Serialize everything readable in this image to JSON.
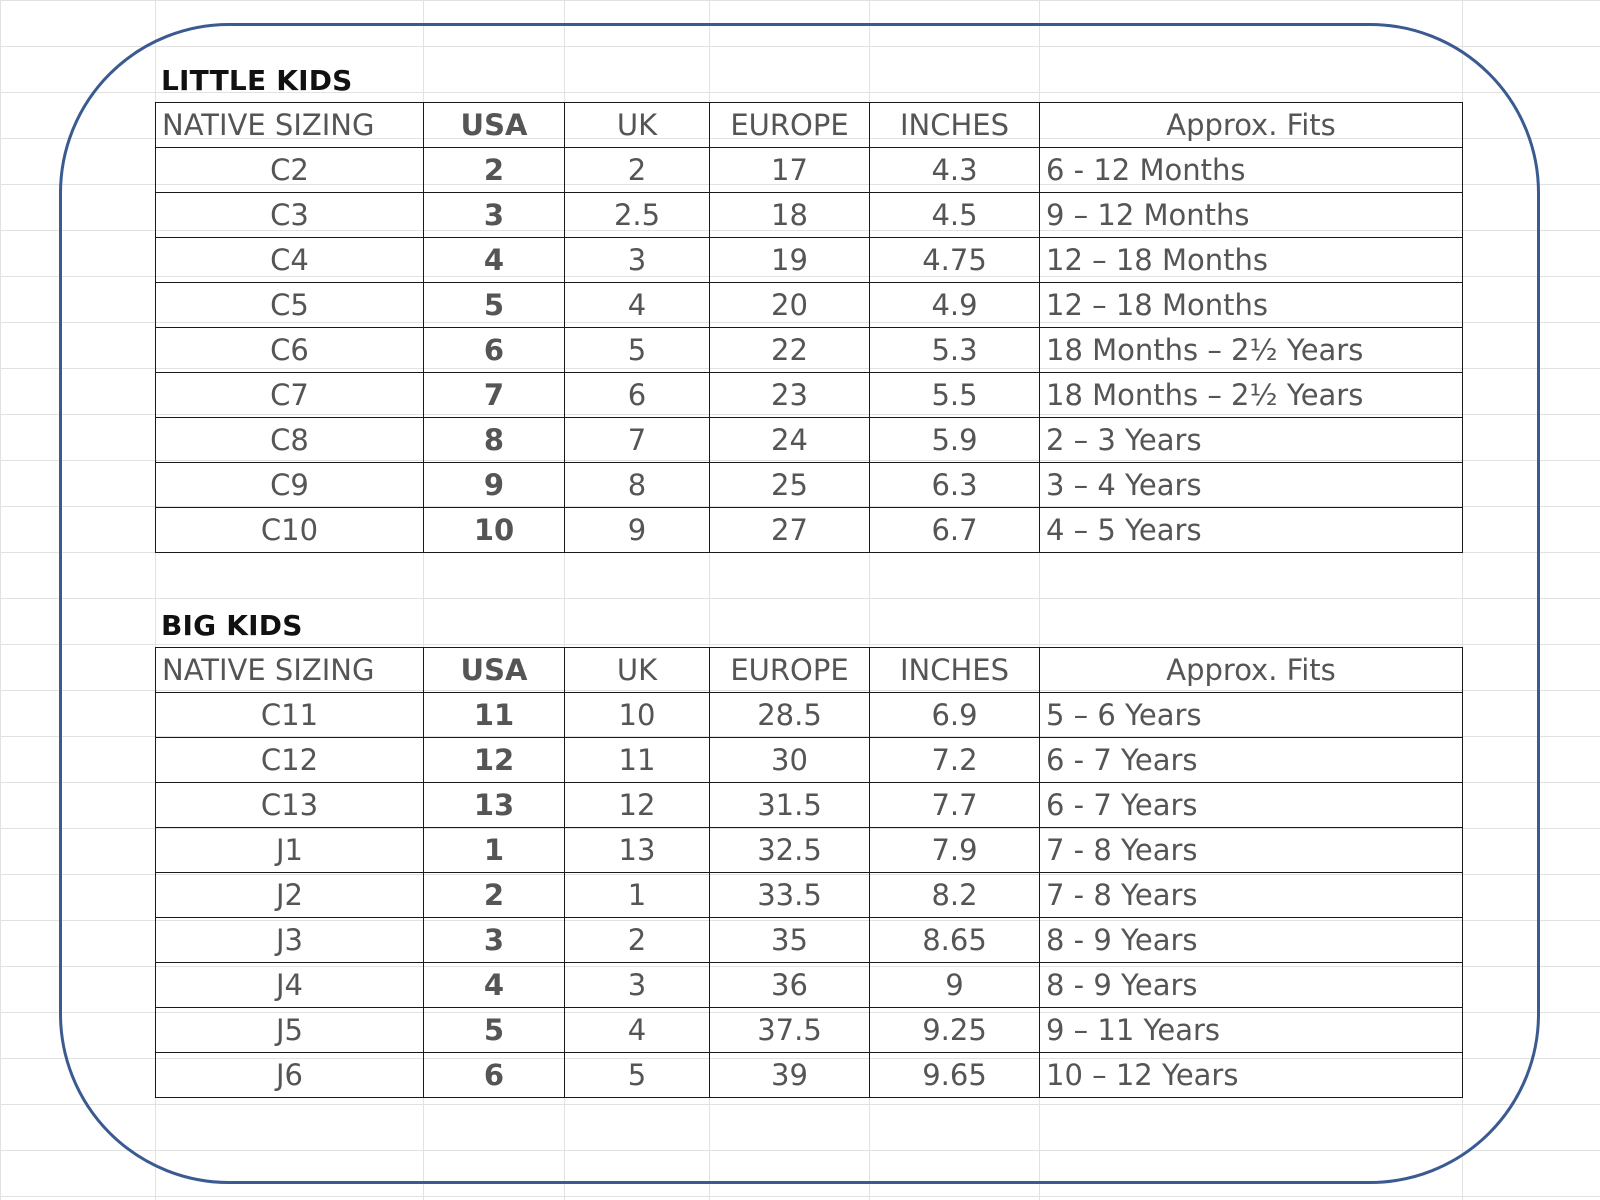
{
  "headers": {
    "native": "NATIVE SIZING",
    "usa": "USA",
    "uk": "UK",
    "europe": "EUROPE",
    "inches": "INCHES",
    "fits": "Approx. Fits"
  },
  "little_kids": {
    "title": "LITTLE KIDS",
    "rows": [
      {
        "native": "C2",
        "usa": "2",
        "uk": "2",
        "europe": "17",
        "inches": "4.3",
        "fits": "6 - 12 Months"
      },
      {
        "native": "C3",
        "usa": "3",
        "uk": "2.5",
        "europe": "18",
        "inches": "4.5",
        "fits": "9 – 12 Months"
      },
      {
        "native": "C4",
        "usa": "4",
        "uk": "3",
        "europe": "19",
        "inches": "4.75",
        "fits": "12 – 18 Months"
      },
      {
        "native": "C5",
        "usa": "5",
        "uk": "4",
        "europe": "20",
        "inches": "4.9",
        "fits": "12 – 18 Months"
      },
      {
        "native": "C6",
        "usa": "6",
        "uk": "5",
        "europe": "22",
        "inches": "5.3",
        "fits": "18 Months – 2½ Years"
      },
      {
        "native": "C7",
        "usa": "7",
        "uk": "6",
        "europe": "23",
        "inches": "5.5",
        "fits": "18 Months – 2½ Years"
      },
      {
        "native": "C8",
        "usa": "8",
        "uk": "7",
        "europe": "24",
        "inches": "5.9",
        "fits": "2 – 3 Years"
      },
      {
        "native": "C9",
        "usa": "9",
        "uk": "8",
        "europe": "25",
        "inches": "6.3",
        "fits": "3 – 4 Years"
      },
      {
        "native": "C10",
        "usa": "10",
        "uk": "9",
        "europe": "27",
        "inches": "6.7",
        "fits": "4 – 5 Years"
      }
    ]
  },
  "big_kids": {
    "title": "BIG KIDS",
    "rows": [
      {
        "native": "C11",
        "usa": "11",
        "uk": "10",
        "europe": "28.5",
        "inches": "6.9",
        "fits": "5 – 6 Years"
      },
      {
        "native": "C12",
        "usa": "12",
        "uk": "11",
        "europe": "30",
        "inches": "7.2",
        "fits": "6 - 7 Years"
      },
      {
        "native": "C13",
        "usa": "13",
        "uk": "12",
        "europe": "31.5",
        "inches": "7.7",
        "fits": "6 - 7 Years"
      },
      {
        "native": "J1",
        "usa": "1",
        "uk": "13",
        "europe": "32.5",
        "inches": "7.9",
        "fits": "7 - 8 Years"
      },
      {
        "native": "J2",
        "usa": "2",
        "uk": "1",
        "europe": "33.5",
        "inches": "8.2",
        "fits": "7 - 8 Years"
      },
      {
        "native": "J3",
        "usa": "3",
        "uk": "2",
        "europe": "35",
        "inches": "8.65",
        "fits": "8 - 9 Years"
      },
      {
        "native": "J4",
        "usa": "4",
        "uk": "3",
        "europe": "36",
        "inches": "9",
        "fits": "8 - 9 Years"
      },
      {
        "native": "J5",
        "usa": "5",
        "uk": "4",
        "europe": "37.5",
        "inches": "9.25",
        "fits": "9 – 11 Years"
      },
      {
        "native": "J6",
        "usa": "6",
        "uk": "5",
        "europe": "39",
        "inches": "9.65",
        "fits": "10 – 12 Years"
      }
    ]
  }
}
